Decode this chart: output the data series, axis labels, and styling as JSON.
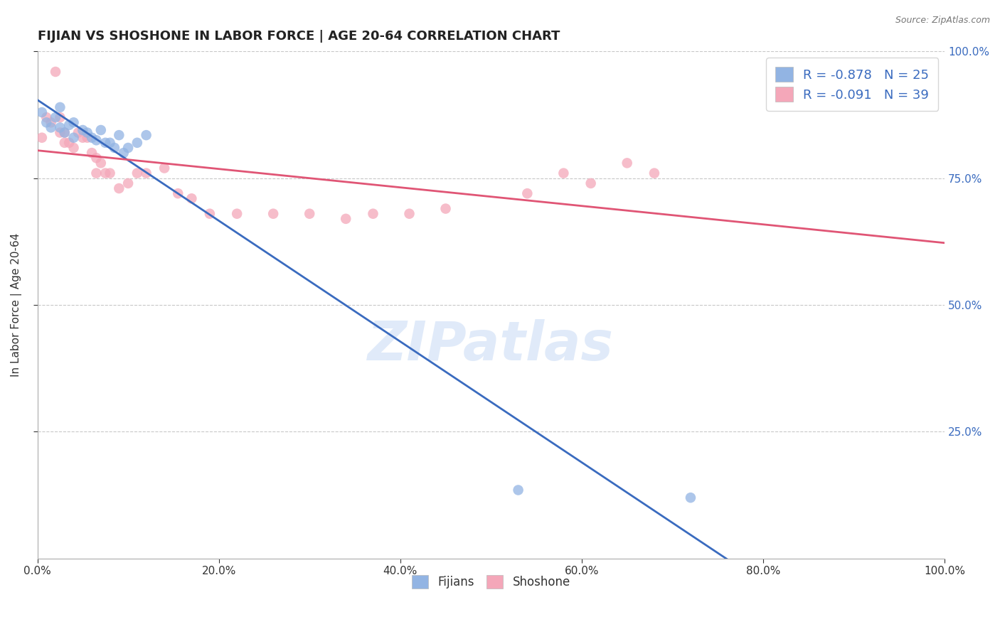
{
  "title": "FIJIAN VS SHOSHONE IN LABOR FORCE | AGE 20-64 CORRELATION CHART",
  "source": "Source: ZipAtlas.com",
  "ylabel": "In Labor Force | Age 20-64",
  "xlim": [
    0.0,
    1.0
  ],
  "ylim": [
    0.0,
    1.0
  ],
  "xtick_labels": [
    "0.0%",
    "20.0%",
    "40.0%",
    "60.0%",
    "80.0%",
    "100.0%"
  ],
  "xtick_vals": [
    0.0,
    0.2,
    0.4,
    0.6,
    0.8,
    1.0
  ],
  "ytick_labels": [
    "25.0%",
    "50.0%",
    "75.0%",
    "100.0%"
  ],
  "ytick_vals": [
    0.25,
    0.5,
    0.75,
    1.0
  ],
  "legend_labels": [
    "Fijians",
    "Shoshone"
  ],
  "fijian_color": "#92b4e3",
  "shoshone_color": "#f4a7b9",
  "fijian_line_color": "#3a6bbf",
  "shoshone_line_color": "#e05575",
  "fijian_R": -0.878,
  "fijian_N": 25,
  "shoshone_R": -0.091,
  "shoshone_N": 39,
  "background_color": "#ffffff",
  "grid_color": "#c8c8c8",
  "watermark": "ZIPatlas",
  "fijian_x": [
    0.005,
    0.01,
    0.015,
    0.02,
    0.025,
    0.025,
    0.03,
    0.035,
    0.04,
    0.04,
    0.05,
    0.055,
    0.06,
    0.065,
    0.07,
    0.075,
    0.08,
    0.085,
    0.09,
    0.095,
    0.1,
    0.11,
    0.12,
    0.53,
    0.72
  ],
  "fijian_y": [
    0.88,
    0.86,
    0.85,
    0.87,
    0.85,
    0.89,
    0.84,
    0.855,
    0.86,
    0.83,
    0.845,
    0.84,
    0.83,
    0.825,
    0.845,
    0.82,
    0.82,
    0.81,
    0.835,
    0.8,
    0.81,
    0.82,
    0.835,
    0.135,
    0.12
  ],
  "shoshone_x": [
    0.005,
    0.01,
    0.015,
    0.02,
    0.025,
    0.025,
    0.03,
    0.03,
    0.035,
    0.04,
    0.045,
    0.05,
    0.055,
    0.06,
    0.065,
    0.065,
    0.07,
    0.075,
    0.08,
    0.09,
    0.1,
    0.11,
    0.12,
    0.14,
    0.155,
    0.17,
    0.19,
    0.22,
    0.26,
    0.3,
    0.34,
    0.37,
    0.41,
    0.45,
    0.54,
    0.58,
    0.61,
    0.65,
    0.68
  ],
  "shoshone_y": [
    0.83,
    0.87,
    0.86,
    0.96,
    0.84,
    0.87,
    0.82,
    0.84,
    0.82,
    0.81,
    0.84,
    0.83,
    0.83,
    0.8,
    0.79,
    0.76,
    0.78,
    0.76,
    0.76,
    0.73,
    0.74,
    0.76,
    0.76,
    0.77,
    0.72,
    0.71,
    0.68,
    0.68,
    0.68,
    0.68,
    0.67,
    0.68,
    0.68,
    0.69,
    0.72,
    0.76,
    0.74,
    0.78,
    0.76
  ]
}
